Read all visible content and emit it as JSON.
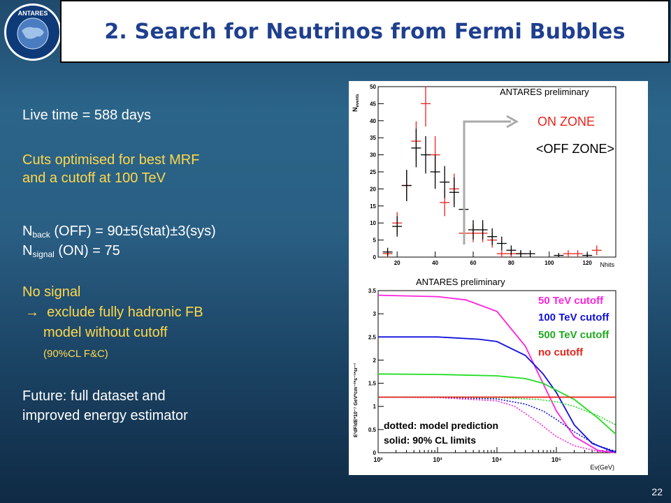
{
  "slide": {
    "title": "2. Search for Neutrinos from Fermi Bubbles",
    "page_number": "22",
    "logo_text": "ANTARES"
  },
  "left_text": {
    "live_time": "Live time = 588 days",
    "cuts_line1": "Cuts optimised for best MRF",
    "cuts_line2": "and a cutoff  at 100 TeV",
    "nback_main": "N",
    "nback_sub": "back",
    "nback_rest": " (OFF) = 90±5(stat)±3(sys)",
    "nsignal_main": "N",
    "nsignal_sub": "signal",
    "nsignal_rest": " (ON)   = 75",
    "no_signal": "No signal",
    "exclude_arrow": "→",
    "exclude_line1": "exclude fully hadronic FB",
    "exclude_line2": "model without cutoff",
    "cl_note": "(90%CL F&C)",
    "future_line1": "Future: full dataset and",
    "future_line2": "improved energy estimator"
  },
  "colors": {
    "title_text": "#1f3f8f",
    "yellow_text": "#ffd84a",
    "on_zone": "#e8231a",
    "off_zone": "#000000",
    "cutoff_50": "#ff22dd",
    "cutoff_100": "#1010dd",
    "cutoff_500": "#20dd20",
    "no_cutoff": "#e8231a"
  },
  "chart_data": [
    {
      "type": "scatter",
      "title": "",
      "xlabel": "Nhits",
      "ylabel": "N_events",
      "xlim": [
        10,
        135
      ],
      "ylim": [
        0,
        50
      ],
      "x_ticks": [
        20,
        40,
        60,
        80,
        100,
        120
      ],
      "y_ticks": [
        0,
        5,
        10,
        15,
        20,
        25,
        30,
        35,
        40,
        45,
        50
      ],
      "annotation": "ANTARES preliminary",
      "legend": [
        "ON ZONE",
        "<OFF ZONE>"
      ],
      "series": [
        {
          "name": "ON ZONE",
          "points": [
            [
              15,
              1
            ],
            [
              20,
              10
            ],
            [
              25,
              21
            ],
            [
              30,
              34
            ],
            [
              35,
              45
            ],
            [
              40,
              30
            ],
            [
              45,
              16
            ],
            [
              50,
              20
            ],
            [
              55,
              7
            ],
            [
              60,
              7
            ],
            [
              65,
              7
            ],
            [
              70,
              5
            ],
            [
              75,
              1
            ],
            [
              80,
              1
            ],
            [
              85,
              1
            ],
            [
              110,
              1
            ],
            [
              115,
              1
            ],
            [
              125,
              2
            ]
          ]
        },
        {
          "name": "<OFF ZONE>",
          "points": [
            [
              15,
              1.5
            ],
            [
              20,
              9
            ],
            [
              25,
              21
            ],
            [
              30,
              32
            ],
            [
              35,
              30
            ],
            [
              40,
              25
            ],
            [
              45,
              22
            ],
            [
              50,
              19
            ],
            [
              55,
              14
            ],
            [
              60,
              8
            ],
            [
              65,
              8
            ],
            [
              70,
              6
            ],
            [
              75,
              4
            ],
            [
              80,
              2
            ],
            [
              85,
              1
            ],
            [
              90,
              1
            ],
            [
              105,
              0.5
            ],
            [
              120,
              0.5
            ]
          ]
        }
      ]
    },
    {
      "type": "line",
      "title": "",
      "xlabel": "Eν(GeV)",
      "ylabel": "E²dF/dE*10⁻⁷ GeV*cm⁻²*s⁻¹*sr⁻¹",
      "x_log": true,
      "xlim": [
        100,
        1000000
      ],
      "ylim": [
        0,
        3.5
      ],
      "x_tick_labels": [
        "10²",
        "10³",
        "10⁴",
        "10⁵"
      ],
      "y_ticks": [
        0,
        0.5,
        1,
        1.5,
        2,
        2.5,
        3,
        3.5
      ],
      "annotation": "ANTARES preliminary",
      "notes": [
        "dotted: model prediction",
        "solid: 90% CL limits"
      ],
      "series": [
        {
          "name": "50 TeV cutoff",
          "style": "solid",
          "x": [
            100,
            1000,
            3000,
            10000,
            30000,
            50000,
            100000,
            200000,
            500000,
            1000000
          ],
          "y": [
            3.4,
            3.37,
            3.3,
            3.05,
            2.3,
            1.7,
            0.9,
            0.35,
            0.05,
            0.0
          ]
        },
        {
          "name": "100 TeV cutoff",
          "style": "solid",
          "x": [
            100,
            1000,
            5000,
            10000,
            30000,
            60000,
            100000,
            200000,
            400000,
            1000000
          ],
          "y": [
            2.5,
            2.5,
            2.45,
            2.4,
            2.1,
            1.7,
            1.3,
            0.6,
            0.2,
            0.0
          ]
        },
        {
          "name": "500 TeV cutoff",
          "style": "solid",
          "x": [
            100,
            1000,
            10000,
            30000,
            60000,
            100000,
            200000,
            500000,
            1000000
          ],
          "y": [
            1.7,
            1.69,
            1.66,
            1.6,
            1.5,
            1.35,
            1.15,
            0.75,
            0.4
          ]
        },
        {
          "name": "no cutoff",
          "style": "solid",
          "x": [
            100,
            1000000
          ],
          "y": [
            1.2,
            1.2
          ]
        },
        {
          "name": "50 TeV cutoff model",
          "style": "dotted",
          "x": [
            100,
            1000,
            10000,
            20000,
            50000,
            100000,
            200000,
            500000,
            1000000
          ],
          "y": [
            1.2,
            1.19,
            1.12,
            1.0,
            0.65,
            0.35,
            0.15,
            0.03,
            0.0
          ]
        },
        {
          "name": "100 TeV cutoff model",
          "style": "dotted",
          "x": [
            100,
            1000,
            10000,
            30000,
            60000,
            100000,
            200000,
            500000,
            1000000
          ],
          "y": [
            1.2,
            1.2,
            1.16,
            1.05,
            0.9,
            0.72,
            0.45,
            0.15,
            0.03
          ]
        },
        {
          "name": "500 TeV cutoff model",
          "style": "dotted",
          "x": [
            100,
            1000,
            10000,
            50000,
            100000,
            200000,
            500000,
            1000000
          ],
          "y": [
            1.2,
            1.2,
            1.19,
            1.15,
            1.1,
            1.0,
            0.8,
            0.6
          ]
        },
        {
          "name": "no cutoff model",
          "style": "dotted",
          "x": [
            100,
            1000000
          ],
          "y": [
            1.2,
            1.2
          ]
        }
      ]
    }
  ],
  "chart_labels": {
    "preliminary_top": "ANTARES preliminary",
    "preliminary_bottom": "ANTARES preliminary",
    "on_zone": "ON ZONE",
    "off_zone": "<OFF ZONE>",
    "legend_50": "50 TeV cutoff",
    "legend_100": "100 TeV cutoff",
    "legend_500": "500 TeV cutoff",
    "legend_no": "no cutoff",
    "note_dotted": "dotted: model prediction",
    "note_solid": "solid: 90% CL limits",
    "top_xlabel": "Nhits",
    "top_ylabel_main": "N",
    "top_ylabel_sub": "events",
    "bottom_xlabel": "Eν(GeV)",
    "bottom_ylabel": "E²dF/dE*10⁻⁷ GeV*cm⁻²*s⁻¹*sr⁻¹"
  }
}
